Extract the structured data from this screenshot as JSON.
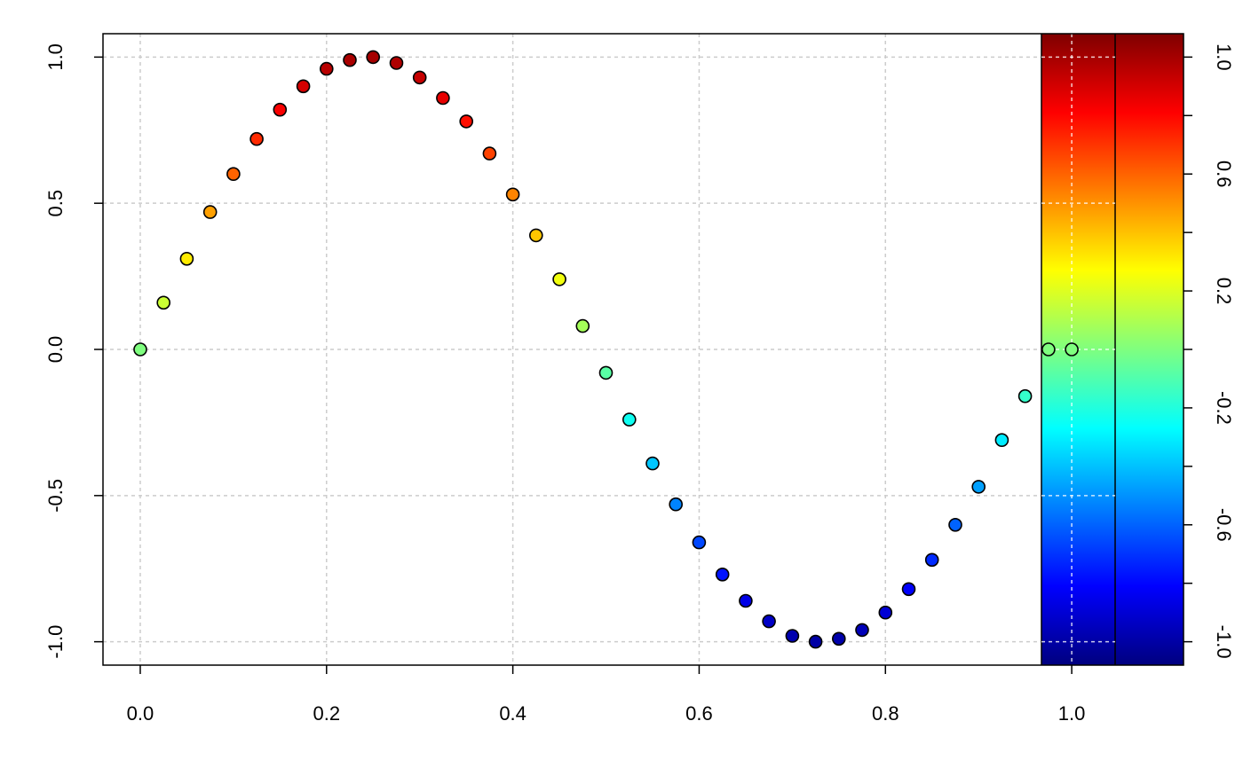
{
  "chart_data": {
    "type": "scatter",
    "title": "",
    "xlabel": "",
    "ylabel": "",
    "grid": true,
    "xlim": [
      -0.04,
      1.12
    ],
    "ylim": [
      -1.08,
      1.08
    ],
    "x_ticks": [
      "0.0",
      "0.2",
      "0.4",
      "0.6",
      "0.8",
      "1.0"
    ],
    "x_tick_values": [
      0.0,
      0.2,
      0.4,
      0.6,
      0.8,
      1.0
    ],
    "y_ticks": [
      "-1.0",
      "-0.5",
      "0.0",
      "0.5",
      "1.0"
    ],
    "y_tick_values": [
      -1.0,
      -0.5,
      0.0,
      0.5,
      1.0
    ],
    "series": [
      {
        "color_by": "y",
        "x": [
          0.0,
          0.025,
          0.05,
          0.075,
          0.1,
          0.125,
          0.15,
          0.175,
          0.2,
          0.225,
          0.25,
          0.275,
          0.3,
          0.325,
          0.35,
          0.375,
          0.4,
          0.425,
          0.45,
          0.475,
          0.5,
          0.525,
          0.55,
          0.575,
          0.6,
          0.625,
          0.65,
          0.675,
          0.7,
          0.725,
          0.75,
          0.775,
          0.8,
          0.825,
          0.85,
          0.875,
          0.9,
          0.925,
          0.95,
          0.975,
          1.0
        ],
        "y": [
          0.0,
          0.16,
          0.31,
          0.47,
          0.6,
          0.72,
          0.82,
          0.9,
          0.96,
          0.99,
          1.0,
          0.98,
          0.93,
          0.86,
          0.78,
          0.67,
          0.53,
          0.39,
          0.24,
          0.08,
          -0.08,
          -0.24,
          -0.39,
          -0.53,
          -0.66,
          -0.77,
          -0.86,
          -0.93,
          -0.98,
          -1.0,
          -0.99,
          -0.96,
          -0.9,
          -0.82,
          -0.72,
          -0.6,
          -0.47,
          -0.31,
          -0.16,
          0.0,
          0.0
        ]
      }
    ],
    "colorbar": {
      "placement": "right",
      "range": [
        -1.08,
        1.08
      ],
      "tick_values": [
        -1.0,
        -0.8,
        -0.6,
        -0.4,
        -0.2,
        0.0,
        0.2,
        0.4,
        0.6,
        0.8,
        1.0
      ],
      "labeled_ticks": [
        "-1.0",
        "-0.6",
        "-0.2",
        "0.2",
        "0.6",
        "1.0"
      ],
      "labeled_values": [
        -1.0,
        -0.6,
        -0.2,
        0.2,
        0.6,
        1.0
      ],
      "palette": [
        "#00007F",
        "#0000FF",
        "#007FFF",
        "#00FFFF",
        "#7FFF7F",
        "#FFFF00",
        "#FF7F00",
        "#FF0000",
        "#7F0000"
      ]
    }
  }
}
